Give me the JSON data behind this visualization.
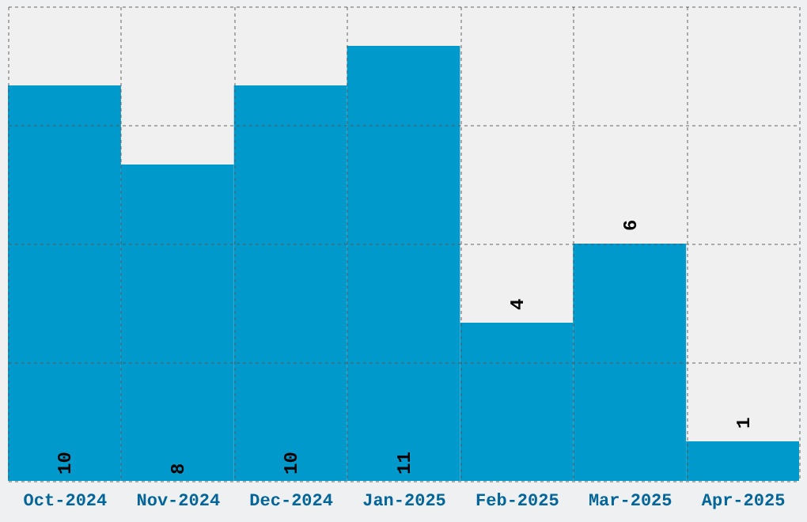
{
  "chart_data": {
    "type": "bar",
    "categories": [
      "Oct-2024",
      "Nov-2024",
      "Dec-2024",
      "Jan-2025",
      "Feb-2025",
      "Mar-2025",
      "Apr-2025"
    ],
    "values": [
      10,
      8,
      10,
      11,
      4,
      6,
      1
    ],
    "color": "#0099cc",
    "ylim": [
      0,
      12
    ],
    "yticks": [
      0,
      3,
      6,
      9,
      12
    ],
    "grid": true,
    "data_labels": true,
    "tick_labels": "x"
  }
}
